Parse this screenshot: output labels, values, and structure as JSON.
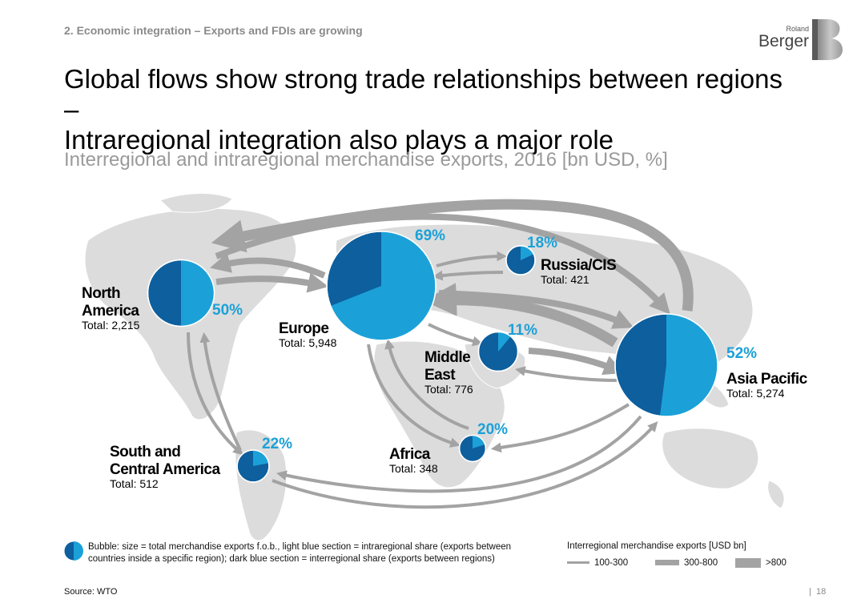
{
  "header": {
    "section": "2. Economic integration – Exports and FDIs are growing",
    "title_line1": "Global flows show strong trade relationships between regions –",
    "title_line2": "Intraregional integration also plays a major role",
    "subtitle": "Interregional and intraregional merchandise exports, 2016 [bn USD, %]"
  },
  "logo": {
    "small": "Roland",
    "big": "Berger",
    "mark": "B"
  },
  "colors": {
    "light_blue": "#1ba1d8",
    "dark_blue": "#0d5f9e",
    "arrow": "#a3a3a3",
    "map": "#dcdcdc"
  },
  "chart_data": {
    "type": "bubble-map",
    "unit": "bn USD",
    "regions": [
      {
        "name_lines": [
          "North",
          "America"
        ],
        "total_label": "Total: 2,215",
        "total": 2215,
        "intraregional_pct": 50,
        "pct_label": "50%"
      },
      {
        "name_lines": [
          "Europe"
        ],
        "total_label": "Total: 5,948",
        "total": 5948,
        "intraregional_pct": 69,
        "pct_label": "69%"
      },
      {
        "name_lines": [
          "Russia/CIS"
        ],
        "total_label": "Total: 421",
        "total": 421,
        "intraregional_pct": 18,
        "pct_label": "18%"
      },
      {
        "name_lines": [
          "Middle",
          "East"
        ],
        "total_label": "Total: 776",
        "total": 776,
        "intraregional_pct": 11,
        "pct_label": "11%"
      },
      {
        "name_lines": [
          "Asia Pacific"
        ],
        "total_label": "Total: 5,274",
        "total": 5274,
        "intraregional_pct": 52,
        "pct_label": "52%"
      },
      {
        "name_lines": [
          "South and",
          "Central America"
        ],
        "total_label": "Total: 512",
        "total": 512,
        "intraregional_pct": 22,
        "pct_label": "22%"
      },
      {
        "name_lines": [
          "Africa"
        ],
        "total_label": "Total: 348",
        "total": 348,
        "intraregional_pct": 20,
        "pct_label": "20%"
      }
    ],
    "flows": [
      {
        "from": "Asia Pacific",
        "to": "North America",
        "size_class": ">800"
      },
      {
        "from": "Asia Pacific",
        "to": "Europe",
        "size_class": ">800"
      },
      {
        "from": "Europe",
        "to": "Asia Pacific",
        "size_class": "300-800"
      },
      {
        "from": "Europe",
        "to": "North America",
        "size_class": "300-800"
      },
      {
        "from": "North America",
        "to": "Europe",
        "size_class": "300-800"
      },
      {
        "from": "North America",
        "to": "Asia Pacific",
        "size_class": "300-800"
      },
      {
        "from": "Europe",
        "to": "Russia/CIS",
        "size_class": "100-300"
      },
      {
        "from": "Russia/CIS",
        "to": "Europe",
        "size_class": "100-300"
      },
      {
        "from": "Europe",
        "to": "Middle East",
        "size_class": "100-300"
      },
      {
        "from": "Middle East",
        "to": "Asia Pacific",
        "size_class": "300-800"
      },
      {
        "from": "Asia Pacific",
        "to": "Middle East",
        "size_class": "100-300"
      },
      {
        "from": "Europe",
        "to": "Africa",
        "size_class": "100-300"
      },
      {
        "from": "Africa",
        "to": "Europe",
        "size_class": "100-300"
      },
      {
        "from": "Asia Pacific",
        "to": "Africa",
        "size_class": "100-300"
      },
      {
        "from": "North America",
        "to": "South and Central America",
        "size_class": "100-300"
      },
      {
        "from": "South and Central America",
        "to": "North America",
        "size_class": "100-300"
      },
      {
        "from": "Asia Pacific",
        "to": "South and Central America",
        "size_class": "100-300"
      },
      {
        "from": "South and Central America",
        "to": "Asia Pacific",
        "size_class": "100-300"
      }
    ],
    "legend": {
      "bubble_note": "Bubble: size = total merchandise exports f.o.b., light blue section = intraregional share (exports between countries inside a specific region); dark blue section = interregional share (exports between regions)",
      "flow_title": "Interregional merchandise exports [USD bn]",
      "flow_classes": [
        "100-300",
        "300-800",
        ">800"
      ]
    }
  },
  "footer": {
    "source": "Source: WTO",
    "page": "18"
  }
}
